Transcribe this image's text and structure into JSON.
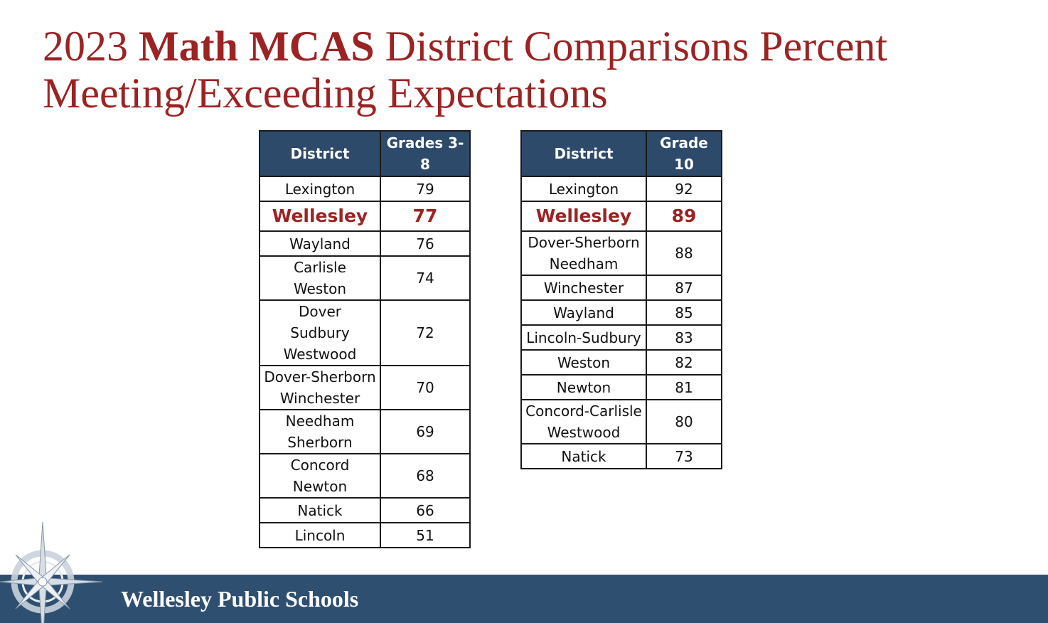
{
  "title": {
    "part1": "2023 ",
    "bold": "Math MCAS",
    "part2": " District Comparisons Percent Meeting/Exceeding Expectations"
  },
  "left_table": {
    "headers": [
      "District",
      "Grades 3-8"
    ],
    "rows": [
      {
        "district": [
          "Lexington"
        ],
        "value": "79"
      },
      {
        "district": [
          "Wellesley"
        ],
        "value": "77",
        "highlight": true
      },
      {
        "district": [
          "Wayland"
        ],
        "value": "76"
      },
      {
        "district": [
          "Carlisle",
          "Weston"
        ],
        "value": "74"
      },
      {
        "district": [
          "Dover",
          "Sudbury",
          "Westwood"
        ],
        "value": "72"
      },
      {
        "district": [
          "Dover-Sherborn",
          "Winchester"
        ],
        "value": "70"
      },
      {
        "district": [
          "Needham",
          "Sherborn"
        ],
        "value": "69"
      },
      {
        "district": [
          "Concord",
          "Newton"
        ],
        "value": "68"
      },
      {
        "district": [
          "Natick"
        ],
        "value": "66"
      },
      {
        "district": [
          "Lincoln"
        ],
        "value": "51"
      }
    ]
  },
  "right_table": {
    "headers": [
      "District",
      "Grade 10"
    ],
    "rows": [
      {
        "district": [
          "Lexington"
        ],
        "value": "92"
      },
      {
        "district": [
          "Wellesley"
        ],
        "value": "89",
        "highlight": true
      },
      {
        "district": [
          "Dover-Sherborn",
          "Needham"
        ],
        "value": "88"
      },
      {
        "district": [
          "Winchester"
        ],
        "value": "87"
      },
      {
        "district": [
          "Wayland"
        ],
        "value": "85"
      },
      {
        "district": [
          "Lincoln-Sudbury"
        ],
        "value": "83"
      },
      {
        "district": [
          "Weston"
        ],
        "value": "82"
      },
      {
        "district": [
          "Newton"
        ],
        "value": "81"
      },
      {
        "district": [
          "Concord-Carlisle",
          "Westwood"
        ],
        "value": "80"
      },
      {
        "district": [
          "Natick"
        ],
        "value": "73"
      }
    ]
  },
  "footer": {
    "org": "Wellesley Public Schools",
    "logo_icon": "compass-rose-icon"
  },
  "colors": {
    "title": "#9b2323",
    "header_bg": "#2e4a6b",
    "footer_bg": "#2f4f70"
  }
}
